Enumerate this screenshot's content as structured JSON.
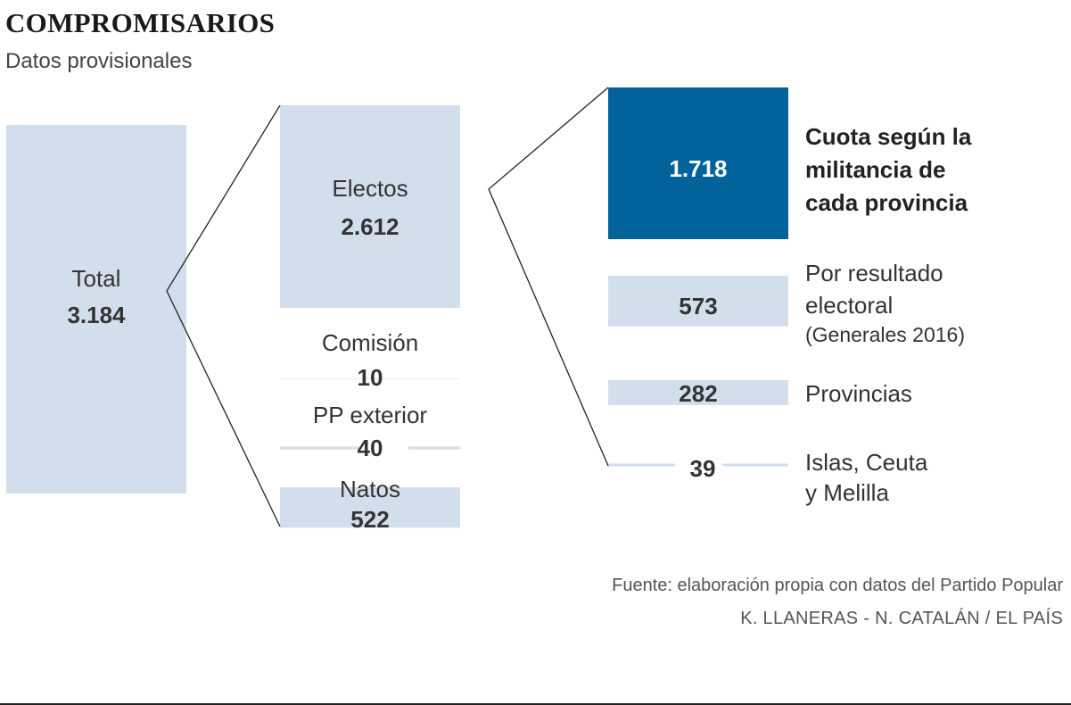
{
  "title": "COMPROMISARIOS",
  "subtitle": "Datos provisionales",
  "source": "Fuente: elaboración propia con datos del Partido Popular",
  "credit": "K. LLANERAS - N. CATALÁN / EL PAÍS",
  "colors": {
    "light": "#d3deec",
    "dark": "#01639a",
    "text": "#333333",
    "line": "#222222"
  },
  "chart_data": {
    "type": "bar",
    "total": {
      "label": "Total",
      "value": 3184,
      "display": "3.184"
    },
    "level1": [
      {
        "label": "Electos",
        "value": 2612,
        "display": "2.612"
      },
      {
        "label": "Comisión",
        "value": 10,
        "display": "10"
      },
      {
        "label": "PP exterior",
        "value": 40,
        "display": "40"
      },
      {
        "label": "Natos",
        "value": 522,
        "display": "522"
      }
    ],
    "level2": [
      {
        "lines": [
          "Cuota según la",
          "militancia de",
          "cada provincia"
        ],
        "value": 1718,
        "display": "1.718",
        "highlight": true
      },
      {
        "lines": [
          "Por resultado",
          "electoral",
          "(Generales 2016)"
        ],
        "value": 573,
        "display": "573"
      },
      {
        "lines": [
          "Provincias"
        ],
        "value": 282,
        "display": "282"
      },
      {
        "lines": [
          "Islas, Ceuta",
          "y Melilla"
        ],
        "value": 39,
        "display": "39"
      }
    ]
  }
}
